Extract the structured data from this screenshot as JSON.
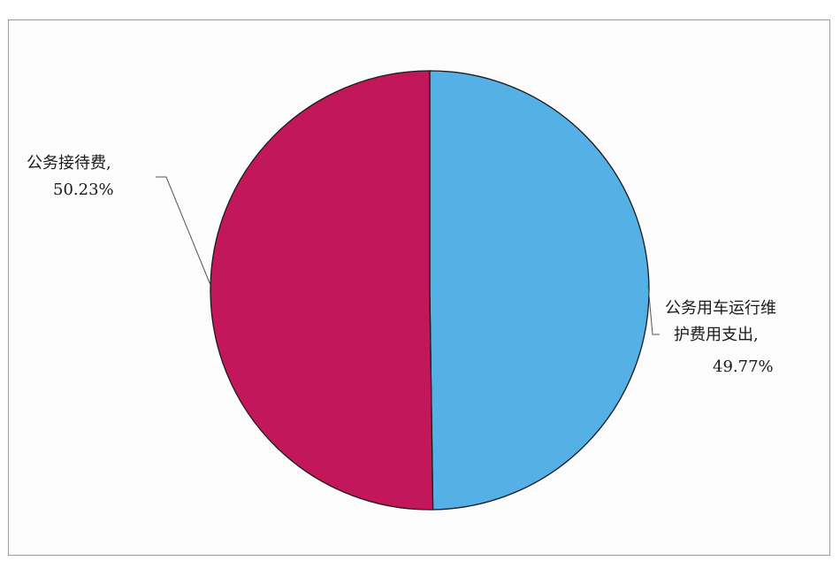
{
  "chart_data": {
    "type": "pie",
    "title": "",
    "slices": [
      {
        "label_lines": [
          "公务用车运行维",
          "护费用支出,"
        ],
        "value_label": "49.77%",
        "value": 49.77,
        "color": "#55b0e6"
      },
      {
        "label_lines": [
          "公务接待费,"
        ],
        "value_label": "50.23%",
        "value": 50.23,
        "color": "#c2185b"
      }
    ]
  }
}
